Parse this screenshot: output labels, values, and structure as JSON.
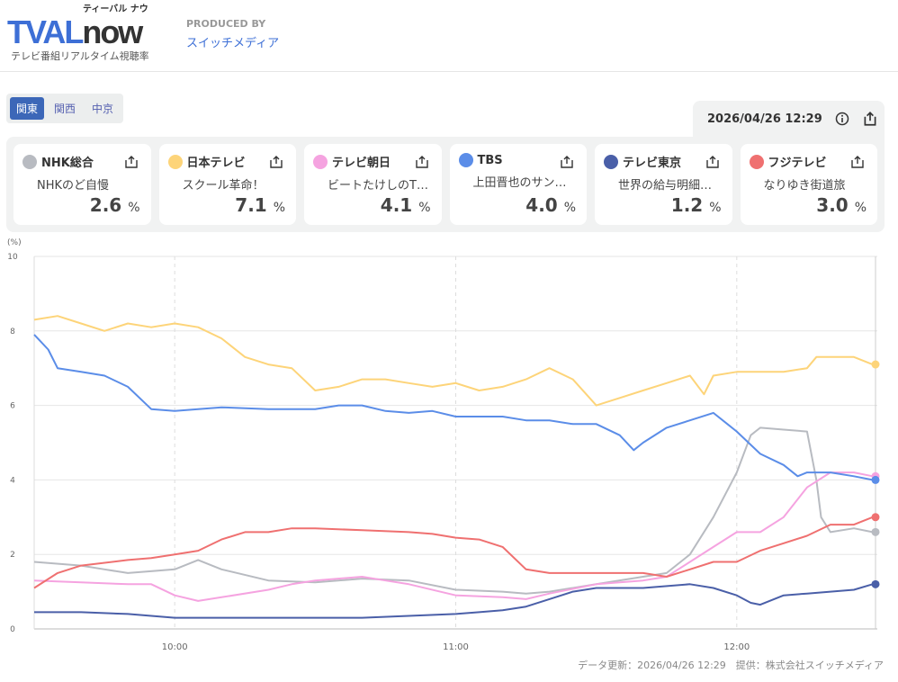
{
  "header": {
    "logo_main": "TVAL",
    "logo_now": "now",
    "logo_kana": "ティーバル ナウ",
    "logo_sub": "テレビ番組リアルタイム視聴率",
    "produced_label": "PRODUCED BY",
    "producer": "スイッチメディア"
  },
  "regions": [
    {
      "label": "関東",
      "active": true
    },
    {
      "label": "関西",
      "active": false
    },
    {
      "label": "中京",
      "active": false
    }
  ],
  "datetime": "2026/04/26 12:29",
  "channels": [
    {
      "name": "NHK総合",
      "program": "NHKのど自慢",
      "rating": "2.6",
      "unit": "%",
      "color": "#b8bbc1"
    },
    {
      "name": "日本テレビ",
      "program": "スクール革命！",
      "rating": "7.1",
      "unit": "%",
      "color": "#fdd479"
    },
    {
      "name": "テレビ朝日",
      "program": "ビートたけしのT…",
      "rating": "4.1",
      "unit": "%",
      "color": "#f5a3e0"
    },
    {
      "name": "TBS",
      "program": "上田晋也のサン…",
      "rating": "4.0",
      "unit": "%",
      "color": "#5b8de8"
    },
    {
      "name": "テレビ東京",
      "program": "世界の給与明細…",
      "rating": "1.2",
      "unit": "%",
      "color": "#4a5fa8"
    },
    {
      "name": "フジテレビ",
      "program": "なりゆき街道旅",
      "rating": "3.0",
      "unit": "%",
      "color": "#ef7070"
    }
  ],
  "chart_data": {
    "type": "line",
    "ylabel": "(%)",
    "ylim": [
      0,
      10
    ],
    "yticks": [
      "0",
      "2",
      "4",
      "6",
      "8",
      "10"
    ],
    "xrange": [
      "09:30",
      "12:30"
    ],
    "xticks": [
      "10:00",
      "11:00",
      "12:00"
    ],
    "series": [
      {
        "name": "NHK総合",
        "color": "#b8bbc1",
        "points": [
          [
            "09:30",
            1.8
          ],
          [
            "09:40",
            1.7
          ],
          [
            "09:45",
            1.6
          ],
          [
            "09:50",
            1.5
          ],
          [
            "10:00",
            1.6
          ],
          [
            "10:05",
            1.85
          ],
          [
            "10:10",
            1.6
          ],
          [
            "10:20",
            1.3
          ],
          [
            "10:30",
            1.25
          ],
          [
            "10:40",
            1.35
          ],
          [
            "10:50",
            1.3
          ],
          [
            "11:00",
            1.05
          ],
          [
            "11:10",
            1.0
          ],
          [
            "11:15",
            0.95
          ],
          [
            "11:20",
            1.0
          ],
          [
            "11:30",
            1.2
          ],
          [
            "11:40",
            1.4
          ],
          [
            "11:45",
            1.5
          ],
          [
            "11:50",
            2.0
          ],
          [
            "11:55",
            3.0
          ],
          [
            "12:00",
            4.2
          ],
          [
            "12:03",
            5.2
          ],
          [
            "12:05",
            5.4
          ],
          [
            "12:10",
            5.35
          ],
          [
            "12:15",
            5.3
          ],
          [
            "12:17",
            4.0
          ],
          [
            "12:18",
            3.0
          ],
          [
            "12:20",
            2.6
          ],
          [
            "12:25",
            2.7
          ],
          [
            "12:29",
            2.6
          ]
        ]
      },
      {
        "name": "日本テレビ",
        "color": "#fdd479",
        "points": [
          [
            "09:30",
            8.3
          ],
          [
            "09:35",
            8.4
          ],
          [
            "09:40",
            8.2
          ],
          [
            "09:45",
            8.0
          ],
          [
            "09:50",
            8.2
          ],
          [
            "09:55",
            8.1
          ],
          [
            "10:00",
            8.2
          ],
          [
            "10:05",
            8.1
          ],
          [
            "10:10",
            7.8
          ],
          [
            "10:15",
            7.3
          ],
          [
            "10:20",
            7.1
          ],
          [
            "10:25",
            7.0
          ],
          [
            "10:30",
            6.4
          ],
          [
            "10:35",
            6.5
          ],
          [
            "10:40",
            6.7
          ],
          [
            "10:45",
            6.7
          ],
          [
            "10:50",
            6.6
          ],
          [
            "10:55",
            6.5
          ],
          [
            "11:00",
            6.6
          ],
          [
            "11:05",
            6.4
          ],
          [
            "11:10",
            6.5
          ],
          [
            "11:15",
            6.7
          ],
          [
            "11:20",
            7.0
          ],
          [
            "11:25",
            6.7
          ],
          [
            "11:30",
            6.0
          ],
          [
            "11:35",
            6.2
          ],
          [
            "11:40",
            6.4
          ],
          [
            "11:45",
            6.6
          ],
          [
            "11:50",
            6.8
          ],
          [
            "11:53",
            6.3
          ],
          [
            "11:55",
            6.8
          ],
          [
            "12:00",
            6.9
          ],
          [
            "12:05",
            6.9
          ],
          [
            "12:10",
            6.9
          ],
          [
            "12:15",
            7.0
          ],
          [
            "12:17",
            7.3
          ],
          [
            "12:20",
            7.3
          ],
          [
            "12:25",
            7.3
          ],
          [
            "12:29",
            7.1
          ]
        ]
      },
      {
        "name": "テレビ朝日",
        "color": "#f5a3e0",
        "points": [
          [
            "09:30",
            1.3
          ],
          [
            "09:40",
            1.25
          ],
          [
            "09:50",
            1.2
          ],
          [
            "09:55",
            1.2
          ],
          [
            "10:00",
            0.9
          ],
          [
            "10:05",
            0.75
          ],
          [
            "10:10",
            0.85
          ],
          [
            "10:20",
            1.05
          ],
          [
            "10:25",
            1.2
          ],
          [
            "10:30",
            1.3
          ],
          [
            "10:40",
            1.4
          ],
          [
            "10:45",
            1.3
          ],
          [
            "10:50",
            1.2
          ],
          [
            "11:00",
            0.9
          ],
          [
            "11:10",
            0.85
          ],
          [
            "11:15",
            0.8
          ],
          [
            "11:20",
            0.95
          ],
          [
            "11:30",
            1.2
          ],
          [
            "11:40",
            1.3
          ],
          [
            "11:45",
            1.4
          ],
          [
            "11:50",
            1.8
          ],
          [
            "11:55",
            2.2
          ],
          [
            "12:00",
            2.6
          ],
          [
            "12:05",
            2.6
          ],
          [
            "12:10",
            3.0
          ],
          [
            "12:15",
            3.8
          ],
          [
            "12:20",
            4.2
          ],
          [
            "12:25",
            4.2
          ],
          [
            "12:29",
            4.1
          ]
        ]
      },
      {
        "name": "TBS",
        "color": "#5b8de8",
        "points": [
          [
            "09:30",
            7.9
          ],
          [
            "09:33",
            7.5
          ],
          [
            "09:35",
            7.0
          ],
          [
            "09:40",
            6.9
          ],
          [
            "09:45",
            6.8
          ],
          [
            "09:50",
            6.5
          ],
          [
            "09:55",
            5.9
          ],
          [
            "10:00",
            5.85
          ],
          [
            "10:05",
            5.9
          ],
          [
            "10:10",
            5.95
          ],
          [
            "10:20",
            5.9
          ],
          [
            "10:30",
            5.9
          ],
          [
            "10:35",
            6.0
          ],
          [
            "10:40",
            6.0
          ],
          [
            "10:45",
            5.85
          ],
          [
            "10:50",
            5.8
          ],
          [
            "10:55",
            5.85
          ],
          [
            "11:00",
            5.7
          ],
          [
            "11:10",
            5.7
          ],
          [
            "11:15",
            5.6
          ],
          [
            "11:20",
            5.6
          ],
          [
            "11:25",
            5.5
          ],
          [
            "11:30",
            5.5
          ],
          [
            "11:35",
            5.2
          ],
          [
            "11:38",
            4.8
          ],
          [
            "11:40",
            5.0
          ],
          [
            "11:45",
            5.4
          ],
          [
            "11:50",
            5.6
          ],
          [
            "11:55",
            5.8
          ],
          [
            "11:58",
            5.5
          ],
          [
            "12:00",
            5.3
          ],
          [
            "12:05",
            4.7
          ],
          [
            "12:10",
            4.4
          ],
          [
            "12:13",
            4.1
          ],
          [
            "12:15",
            4.2
          ],
          [
            "12:20",
            4.2
          ],
          [
            "12:25",
            4.1
          ],
          [
            "12:29",
            4.0
          ]
        ]
      },
      {
        "name": "テレビ東京",
        "color": "#4a5fa8",
        "points": [
          [
            "09:30",
            0.45
          ],
          [
            "09:40",
            0.45
          ],
          [
            "09:50",
            0.4
          ],
          [
            "10:00",
            0.3
          ],
          [
            "10:10",
            0.3
          ],
          [
            "10:20",
            0.3
          ],
          [
            "10:30",
            0.3
          ],
          [
            "10:40",
            0.3
          ],
          [
            "10:50",
            0.35
          ],
          [
            "11:00",
            0.4
          ],
          [
            "11:05",
            0.45
          ],
          [
            "11:10",
            0.5
          ],
          [
            "11:15",
            0.6
          ],
          [
            "11:20",
            0.8
          ],
          [
            "11:25",
            1.0
          ],
          [
            "11:30",
            1.1
          ],
          [
            "11:40",
            1.1
          ],
          [
            "11:50",
            1.2
          ],
          [
            "11:55",
            1.1
          ],
          [
            "12:00",
            0.9
          ],
          [
            "12:03",
            0.7
          ],
          [
            "12:05",
            0.65
          ],
          [
            "12:10",
            0.9
          ],
          [
            "12:15",
            0.95
          ],
          [
            "12:20",
            1.0
          ],
          [
            "12:25",
            1.05
          ],
          [
            "12:29",
            1.2
          ]
        ]
      },
      {
        "name": "フジテレビ",
        "color": "#ef7070",
        "points": [
          [
            "09:30",
            1.1
          ],
          [
            "09:35",
            1.5
          ],
          [
            "09:40",
            1.7
          ],
          [
            "09:50",
            1.85
          ],
          [
            "09:55",
            1.9
          ],
          [
            "10:00",
            2.0
          ],
          [
            "10:05",
            2.1
          ],
          [
            "10:10",
            2.4
          ],
          [
            "10:15",
            2.6
          ],
          [
            "10:20",
            2.6
          ],
          [
            "10:25",
            2.7
          ],
          [
            "10:30",
            2.7
          ],
          [
            "10:40",
            2.65
          ],
          [
            "10:50",
            2.6
          ],
          [
            "10:55",
            2.55
          ],
          [
            "11:00",
            2.45
          ],
          [
            "11:05",
            2.4
          ],
          [
            "11:10",
            2.2
          ],
          [
            "11:15",
            1.6
          ],
          [
            "11:20",
            1.5
          ],
          [
            "11:30",
            1.5
          ],
          [
            "11:40",
            1.5
          ],
          [
            "11:45",
            1.4
          ],
          [
            "11:50",
            1.6
          ],
          [
            "11:55",
            1.8
          ],
          [
            "12:00",
            1.8
          ],
          [
            "12:05",
            2.1
          ],
          [
            "12:10",
            2.3
          ],
          [
            "12:15",
            2.5
          ],
          [
            "12:20",
            2.8
          ],
          [
            "12:25",
            2.8
          ],
          [
            "12:29",
            3.0
          ]
        ]
      }
    ]
  },
  "footer": "データ更新：2026/04/26 12:29　提供：株式会社スイッチメディア"
}
